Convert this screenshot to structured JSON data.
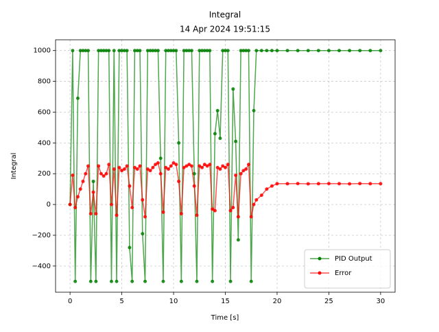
{
  "chart_data": {
    "type": "line",
    "title": "Integral",
    "subtitle": "14 Apr 2024 19:51:15",
    "x_label": "Time [s]",
    "y_label": "Integral",
    "x": [
      0,
      0.25,
      0.5,
      0.75,
      1,
      1.25,
      1.5,
      1.75,
      2,
      2.25,
      2.5,
      2.75,
      3,
      3.25,
      3.5,
      3.75,
      4,
      4.25,
      4.5,
      4.75,
      5,
      5.25,
      5.5,
      5.75,
      6,
      6.25,
      6.5,
      6.75,
      7,
      7.25,
      7.5,
      7.75,
      8,
      8.25,
      8.5,
      8.75,
      9,
      9.25,
      9.5,
      9.75,
      10,
      10.25,
      10.5,
      10.75,
      11,
      11.25,
      11.5,
      11.75,
      12,
      12.25,
      12.5,
      12.75,
      13,
      13.25,
      13.5,
      13.75,
      14,
      14.25,
      14.5,
      14.75,
      15,
      15.25,
      15.5,
      15.75,
      16,
      16.25,
      16.5,
      16.75,
      17,
      17.25,
      17.5,
      17.75,
      18,
      18.5,
      19,
      19.5,
      20,
      21,
      22,
      23,
      24,
      25,
      26,
      27,
      28,
      29,
      30
    ],
    "series": [
      {
        "name": "PID Output",
        "color": "#008000",
        "values": [
          0,
          1000,
          -500,
          690,
          1000,
          1000,
          1000,
          1000,
          -500,
          150,
          -500,
          1000,
          1000,
          1000,
          1000,
          1000,
          -500,
          1000,
          -500,
          1000,
          1000,
          1000,
          1000,
          -280,
          -500,
          1000,
          1000,
          1000,
          -190,
          -500,
          1000,
          1000,
          1000,
          1000,
          1000,
          300,
          -500,
          1000,
          1000,
          1000,
          1000,
          1000,
          400,
          -500,
          1000,
          1000,
          1000,
          1000,
          200,
          -500,
          1000,
          1000,
          1000,
          1000,
          1000,
          -500,
          460,
          610,
          430,
          1000,
          1000,
          1000,
          -500,
          750,
          410,
          -230,
          1000,
          1000,
          1000,
          1000,
          -500,
          610,
          1000,
          1000,
          1000,
          1000,
          1000,
          1000,
          1000,
          1000,
          1000,
          1000,
          1000,
          1000,
          1000,
          1000,
          1000
        ]
      },
      {
        "name": "Error",
        "color": "#ff0000",
        "values": [
          0,
          190,
          -20,
          50,
          100,
          150,
          200,
          250,
          -60,
          80,
          -60,
          250,
          200,
          185,
          200,
          260,
          0,
          230,
          -70,
          240,
          220,
          230,
          250,
          120,
          -20,
          240,
          230,
          250,
          30,
          -80,
          230,
          220,
          240,
          260,
          270,
          200,
          -50,
          240,
          230,
          250,
          270,
          260,
          150,
          -60,
          240,
          250,
          260,
          250,
          120,
          -70,
          250,
          240,
          260,
          250,
          260,
          -30,
          -40,
          240,
          230,
          250,
          240,
          260,
          -40,
          -20,
          190,
          -80,
          200,
          220,
          230,
          260,
          -80,
          0,
          30,
          60,
          100,
          120,
          135,
          135,
          136,
          134,
          135,
          136,
          135,
          134,
          136,
          135,
          135
        ]
      }
    ],
    "xlim": [
      -1.4,
      31.4
    ],
    "ylim": [
      -570,
      1070
    ],
    "xticks": [
      0,
      5,
      10,
      15,
      20,
      25,
      30
    ],
    "yticks": [
      {
        "value": -400,
        "label": "−400"
      },
      {
        "value": -200,
        "label": "−200"
      },
      0,
      200,
      400,
      600,
      800,
      1000
    ],
    "grid": true,
    "legend": "lower right"
  }
}
